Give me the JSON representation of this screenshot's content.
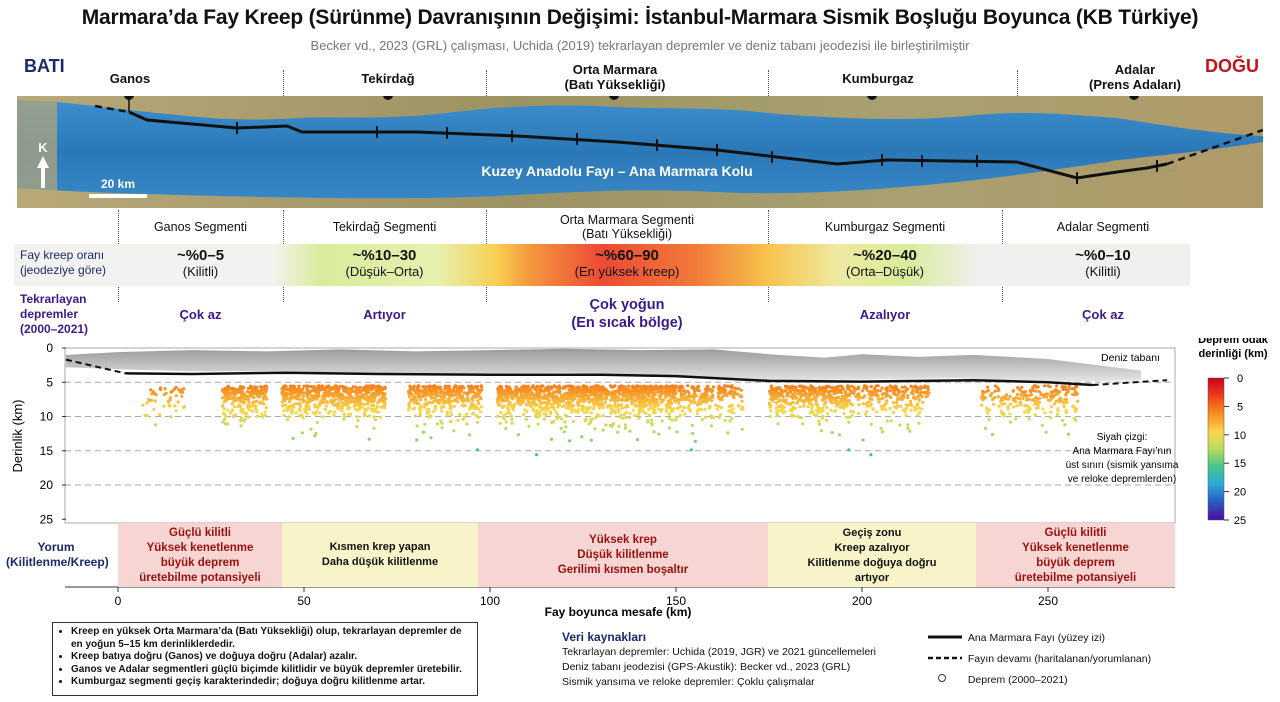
{
  "title": "Marmara’da Fay Kreep (Sürünme) Davranışının Değişimi: İstanbul-Marmara Sismik Boşluğu Boyunca (KB Türkiye)",
  "subtitle": "Becker vd., 2023 (GRL) çalışması, Uchida (2019) tekrarlayan depremler ve deniz tabanı jeodezisi ile birleştirilmiştir",
  "direction": {
    "west": "BATI",
    "east": "DOĞU"
  },
  "towns": [
    {
      "name": "Ganos",
      "sub": ""
    },
    {
      "name": "Tekirdağ",
      "sub": ""
    },
    {
      "name": "Orta Marmara",
      "sub": "(Batı Yüksekliği)"
    },
    {
      "name": "Kumburgaz",
      "sub": ""
    },
    {
      "name": "Adalar",
      "sub": "(Prens Adaları)"
    }
  ],
  "map": {
    "fault_label": "Kuzey Anadolu Fayı – Ana Marmara Kolu",
    "north": "K",
    "scale": "20 km"
  },
  "segments": [
    {
      "name": "Ganos Segmenti",
      "sub": "",
      "rate": "~%0–5",
      "rate_sub": "(Kilitli)",
      "eq": "Çok az",
      "eq_sub": "",
      "interp": [
        "Güçlü kilitli",
        "Yüksek kenetlenme",
        "büyük deprem",
        "üretebilme potansiyeli"
      ],
      "interp_style": "red"
    },
    {
      "name": "Tekirdağ Segmenti",
      "sub": "",
      "rate": "~%10–30",
      "rate_sub": "(Düşük–Orta)",
      "eq": "Artıyor",
      "eq_sub": "",
      "interp": [
        "Kısmen krep yapan",
        "Daha düşük kilitlenme"
      ],
      "interp_style": "dark"
    },
    {
      "name": "Orta Marmara Segmenti",
      "sub": "(Batı Yüksekliği)",
      "rate": "~%60–90",
      "rate_sub": "(En yüksek kreep)",
      "eq": "Çok yoğun",
      "eq_sub": "(En sıcak bölge)",
      "interp": [
        "Yüksek krep",
        "Düşük kilitlenme",
        "Gerilimi kısmen boşaltır"
      ],
      "interp_style": "red"
    },
    {
      "name": "Kumburgaz Segmenti",
      "sub": "",
      "rate": "~%20–40",
      "rate_sub": "(Orta–Düşük)",
      "eq": "Azalıyor",
      "eq_sub": "",
      "interp": [
        "Geçiş zonu",
        "Kreep azalıyor",
        "Kilitlenme doğuya doğru",
        "artıyor"
      ],
      "interp_style": "dark"
    },
    {
      "name": "Adalar Segmenti",
      "sub": "",
      "rate": "~%0–10",
      "rate_sub": "(Kilitli)",
      "eq": "Çok az",
      "eq_sub": "",
      "interp": [
        "Güçlü kilitli",
        "Yüksek kenetlenme",
        "büyük deprem",
        "üretebilme potansiyeli"
      ],
      "interp_style": "red"
    }
  ],
  "row_labels": {
    "rate": [
      "Fay kreep oranı",
      "(jeodeziye göre)"
    ],
    "eq": [
      "Tekrarlayan",
      "depremler",
      "(2000–2021)"
    ],
    "interp": [
      "Yorum",
      "(Kilitlenme/Kreep)"
    ]
  },
  "chart_data": {
    "type": "scatter",
    "xlabel": "Fay boyunca mesafe (km)",
    "ylabel": "Derinlik (km)",
    "xlim": [
      0,
      275
    ],
    "ylim": [
      25,
      0
    ],
    "xticks": [
      "0",
      "50",
      "100",
      "150",
      "200",
      "250"
    ],
    "yticks": [
      "0",
      "5",
      "10",
      "15",
      "20",
      "25"
    ],
    "segment_bounds_km": [
      0,
      44,
      97,
      170,
      222,
      275
    ],
    "seafloor_label": "Deniz tabanı",
    "fault_note": [
      "Siyah çizgi:",
      "Ana Marmara Fayı’nın",
      "üst sınırı (sismik yansıma",
      "ve reloke depremlerden)"
    ],
    "colorbar": {
      "title": [
        "Deprem odak",
        "derinliği (km)"
      ],
      "ticks": [
        "0",
        "5",
        "10",
        "15",
        "20",
        "25"
      ]
    },
    "clusters": [
      {
        "x_from": 5,
        "x_to": 18,
        "n": 45
      },
      {
        "x_from": 28,
        "x_to": 40,
        "n": 230
      },
      {
        "x_from": 44,
        "x_to": 72,
        "n": 570
      },
      {
        "x_from": 78,
        "x_to": 98,
        "n": 340
      },
      {
        "x_from": 102,
        "x_to": 150,
        "n": 1080
      },
      {
        "x_from": 150,
        "x_to": 168,
        "n": 210
      },
      {
        "x_from": 175,
        "x_to": 198,
        "n": 380
      },
      {
        "x_from": 198,
        "x_to": 218,
        "n": 210
      },
      {
        "x_from": 232,
        "x_to": 258,
        "n": 210
      }
    ]
  },
  "notes": [
    "Kreep en yüksek Orta Marmara’da (Batı Yüksekliği) olup, tekrarlayan depremler de en yoğun 5–15 km derinliklerdedir.",
    "Kreep batıya doğru (Ganos) ve doğuya doğru (Adalar) azalır.",
    "Ganos ve Adalar segmentleri güçlü biçimde kilitlidir ve büyük depremler üretebilir.",
    "Kumburgaz segmenti geçiş karakterindedir; doğuya doğru kilitlenme artar."
  ],
  "sources": {
    "title": "Veri kaynakları",
    "items": [
      "Tekrarlayan depremler: Uchida (2019, JGR) ve 2021 güncellemeleri",
      "Deniz tabanı jeodezisi (GPS-Akustik): Becker vd., 2023 (GRL)",
      "Sismik yansıma ve reloke depremler: Çoklu çalışmalar"
    ]
  },
  "legend": {
    "fault": "Ana Marmara Fayı (yüzey izi)",
    "continuation": "Fayın devamı (haritalanan/yorumlanan)",
    "quake": "Deprem (2000–2021)"
  },
  "colors": {
    "ocean": "#2f7fc0",
    "land": "#a89a6a",
    "red_box": "#f6d5d2",
    "yellow_box": "#f8f3c8"
  }
}
